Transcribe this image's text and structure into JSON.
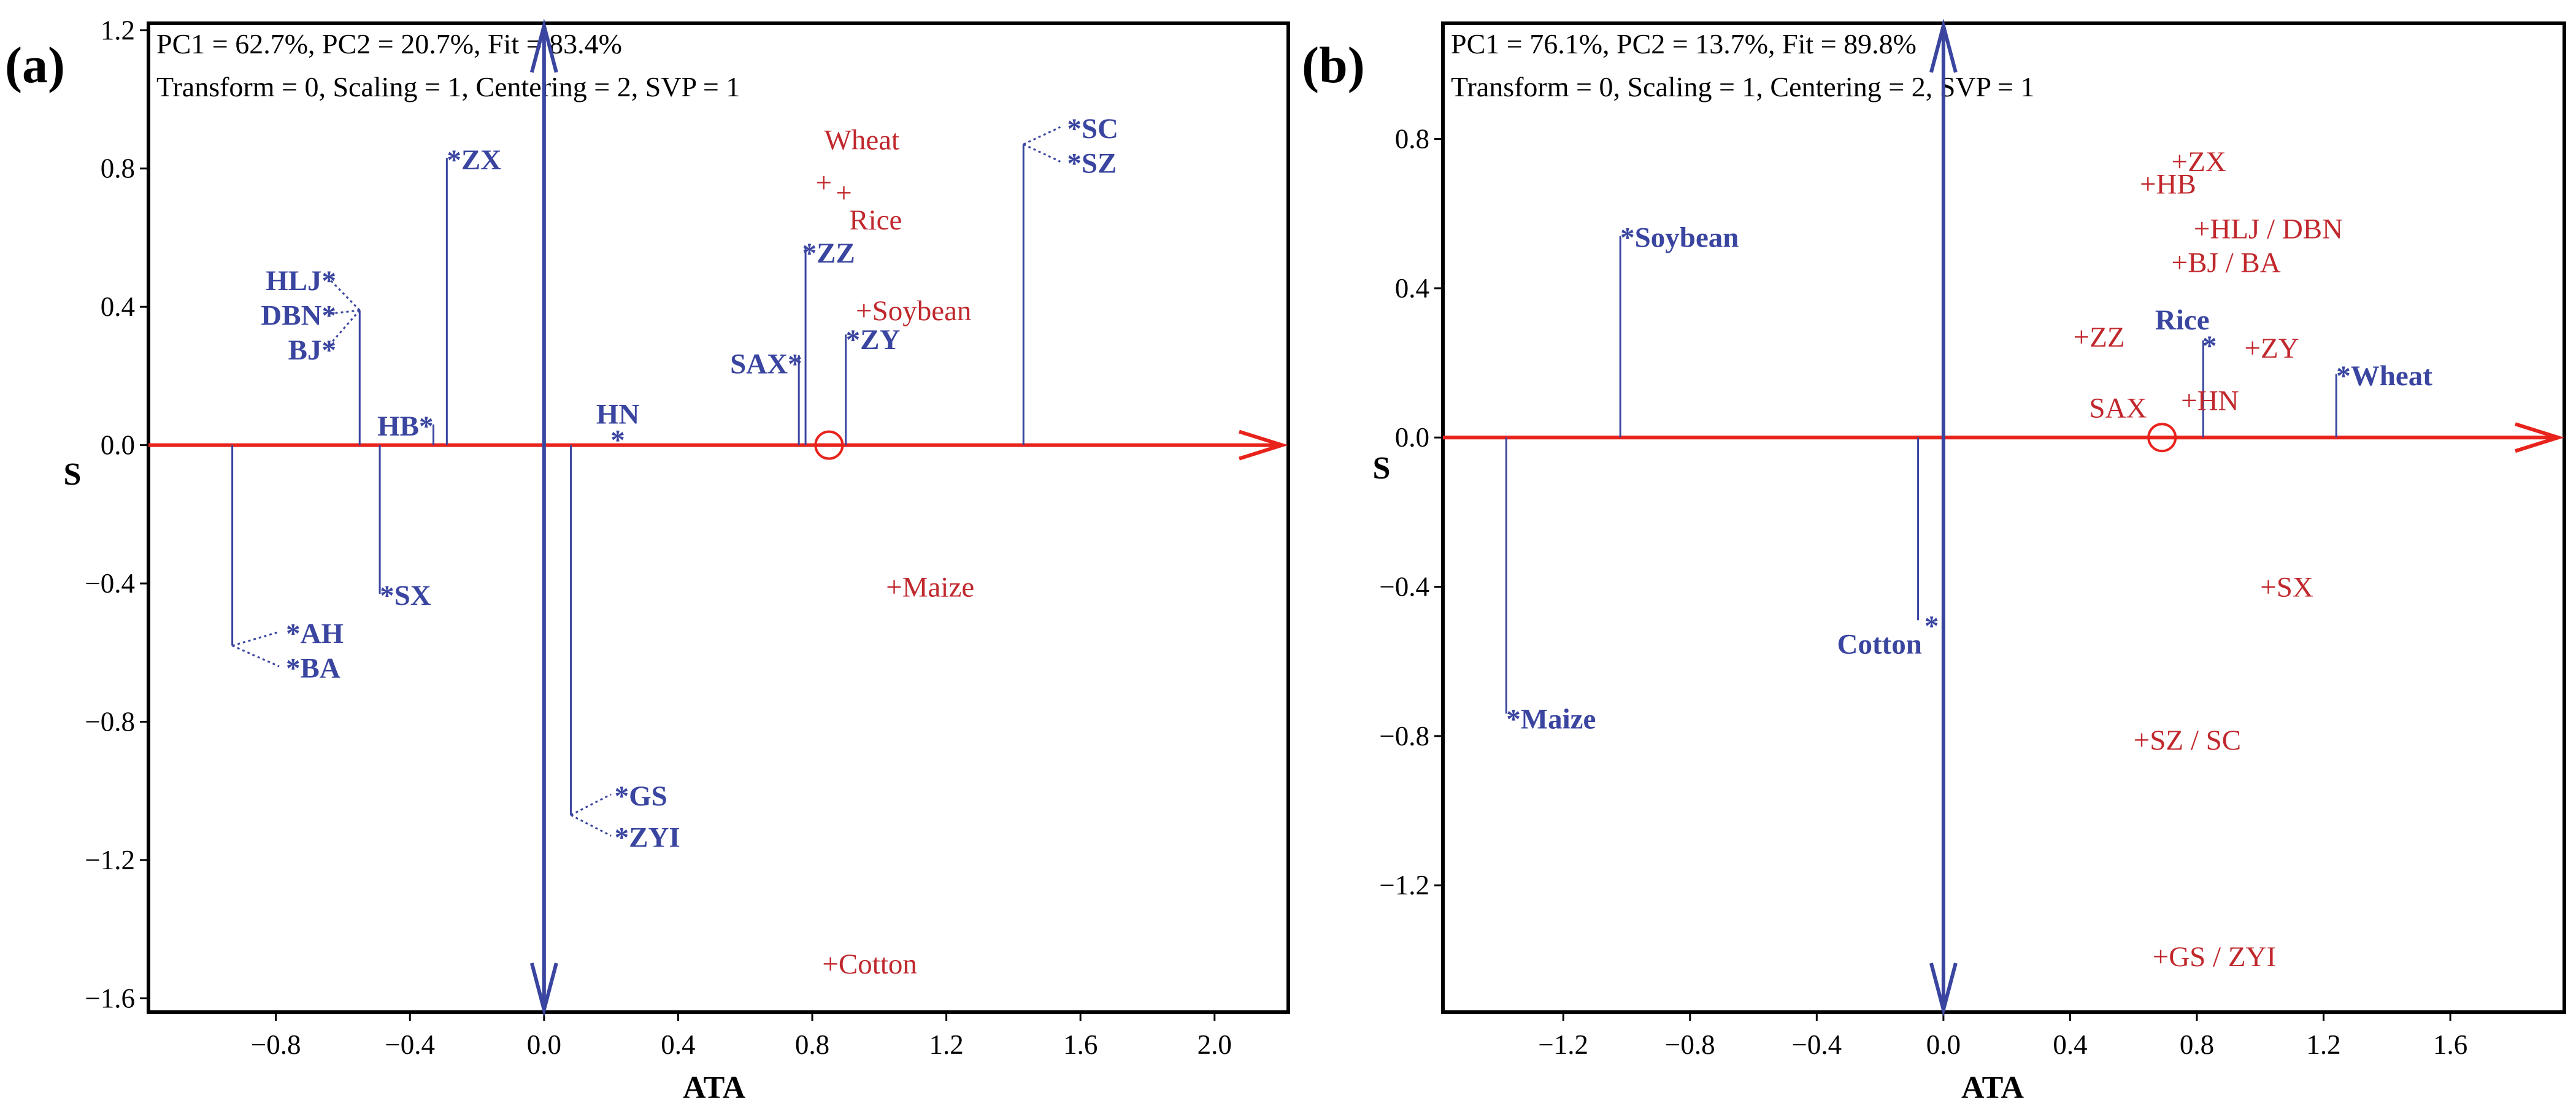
{
  "figure_labels": [
    "(a)",
    "(b)"
  ],
  "colors": {
    "genotype": "#c0282d",
    "environment": "#3a45a0",
    "ata_axis": "#e8231c",
    "ordinate": "#3a45a0",
    "frame": "#000000"
  },
  "chart_data": [
    {
      "type": "scatter",
      "label": "(a)",
      "title_lines": [
        "PC1 = 62.7%, PC2 = 20.7%, Fit = 83.4%",
        "Transform = 0, Scaling = 1, Centering = 2, SVP = 1"
      ],
      "xlabel": "ATA",
      "ylabel": "S",
      "xlim": [
        -1.18,
        2.22
      ],
      "ylim": [
        -1.64,
        1.22
      ],
      "xticks": [
        -0.8,
        -0.4,
        0.0,
        0.4,
        0.8,
        1.2,
        1.6,
        2.0
      ],
      "xtick_labels": [
        "−0.8",
        "−0.4",
        "0.0",
        "0.4",
        "0.8",
        "1.2",
        "1.6",
        "2.0"
      ],
      "yticks": [
        1.2,
        0.8,
        0.4,
        0.0,
        -0.4,
        -0.8,
        -1.2,
        -1.6
      ],
      "ytick_labels": [
        "1.2",
        "0.8",
        "0.4",
        "0.0",
        "−0.4",
        "−0.8",
        "−1.2",
        "−1.6"
      ],
      "ata_arrow_end_x": 2.22,
      "average_environment_x": 0.85,
      "genotypes": [
        {
          "name": "Wheat",
          "x": 0.81,
          "y": 0.76,
          "label_dx": 0.01,
          "label_dy": 0.07,
          "ha": "start"
        },
        {
          "name": "Rice",
          "x": 0.87,
          "y": 0.73,
          "label_dx": 0.02,
          "label_dy": -0.04,
          "ha": "start"
        },
        {
          "name": "Soybean",
          "x": 0.93,
          "y": 0.39,
          "label_dx": 0.0,
          "label_dy": 0.0,
          "ha": "start"
        },
        {
          "name": "Maize",
          "x": 1.02,
          "y": -0.41,
          "label_dx": 0.0,
          "label_dy": 0.0,
          "ha": "start"
        },
        {
          "name": "Cotton",
          "x": 0.83,
          "y": -1.5,
          "label_dx": 0.0,
          "label_dy": 0.0,
          "ha": "start"
        }
      ],
      "environments": [
        {
          "name": "SC",
          "x": 1.56,
          "y": 0.92,
          "ha": "start",
          "group": "sc_sz"
        },
        {
          "name": "SZ",
          "x": 1.56,
          "y": 0.82,
          "ha": "start",
          "group": "sc_sz"
        },
        {
          "name": "ZX",
          "x": -0.29,
          "y": 0.83,
          "ha": "start"
        },
        {
          "name": "HLJ",
          "x": -0.62,
          "y": 0.48,
          "ha": "end",
          "group": "hlj_dbn_bj"
        },
        {
          "name": "DBN",
          "x": -0.62,
          "y": 0.38,
          "ha": "end",
          "group": "hlj_dbn_bj"
        },
        {
          "name": "BJ",
          "x": -0.62,
          "y": 0.28,
          "ha": "end",
          "group": "hlj_dbn_bj"
        },
        {
          "name": "HB",
          "x": -0.33,
          "y": 0.06,
          "ha": "end"
        },
        {
          "name": "HN",
          "x": 0.22,
          "y": 0.02,
          "ha": "middle",
          "label_above": true
        },
        {
          "name": "ZZ",
          "x": 0.77,
          "y": 0.56,
          "ha": "start"
        },
        {
          "name": "SAX",
          "x": 0.77,
          "y": 0.24,
          "ha": "end"
        },
        {
          "name": "ZY",
          "x": 0.9,
          "y": 0.31,
          "ha": "start"
        },
        {
          "name": "SX",
          "x": -0.49,
          "y": -0.43,
          "ha": "start"
        },
        {
          "name": "AH",
          "x": -0.77,
          "y": -0.54,
          "ha": "start",
          "group": "ah_ba"
        },
        {
          "name": "BA",
          "x": -0.77,
          "y": -0.64,
          "ha": "start",
          "group": "ah_ba"
        },
        {
          "name": "GS",
          "x": 0.21,
          "y": -1.01,
          "ha": "start",
          "group": "gs_zyi"
        },
        {
          "name": "ZYI",
          "x": 0.21,
          "y": -1.13,
          "ha": "start",
          "group": "gs_zyi"
        }
      ],
      "projections": [
        {
          "x": -0.93,
          "y1": 0.0,
          "y2": -0.58
        },
        {
          "x": -0.55,
          "y1": 0.0,
          "y2": 0.39
        },
        {
          "x": -0.49,
          "y1": 0.0,
          "y2": -0.43
        },
        {
          "x": -0.33,
          "y1": 0.0,
          "y2": 0.06
        },
        {
          "x": -0.29,
          "y1": 0.0,
          "y2": 0.83
        },
        {
          "x": 0.08,
          "y1": 0.0,
          "y2": -1.07
        },
        {
          "x": 0.76,
          "y1": 0.0,
          "y2": 0.26
        },
        {
          "x": 0.78,
          "y1": 0.0,
          "y2": 0.57
        },
        {
          "x": 0.9,
          "y1": 0.0,
          "y2": 0.32
        },
        {
          "x": 1.43,
          "y1": 0.0,
          "y2": 0.87
        }
      ],
      "connectors": [
        {
          "from": [
            -0.55,
            0.39
          ],
          "to": [
            -0.64,
            0.48
          ]
        },
        {
          "from": [
            -0.55,
            0.39
          ],
          "to": [
            -0.64,
            0.38
          ]
        },
        {
          "from": [
            -0.55,
            0.39
          ],
          "to": [
            -0.64,
            0.29
          ]
        },
        {
          "from": [
            -0.93,
            -0.58
          ],
          "to": [
            -0.79,
            -0.54
          ]
        },
        {
          "from": [
            -0.93,
            -0.58
          ],
          "to": [
            -0.79,
            -0.64
          ]
        },
        {
          "from": [
            0.08,
            -1.07
          ],
          "to": [
            0.2,
            -1.01
          ]
        },
        {
          "from": [
            0.08,
            -1.07
          ],
          "to": [
            0.2,
            -1.13
          ]
        },
        {
          "from": [
            1.43,
            0.87
          ],
          "to": [
            1.54,
            0.92
          ]
        },
        {
          "from": [
            1.43,
            0.87
          ],
          "to": [
            1.54,
            0.82
          ]
        }
      ]
    },
    {
      "type": "scatter",
      "label": "(b)",
      "title_lines": [
        "PC1 = 76.1%, PC2 = 13.7%, Fit = 89.8%",
        "Transform = 0, Scaling = 1, Centering = 2, SVP = 1"
      ],
      "xlabel": "ATA",
      "ylabel": "S",
      "xlim": [
        -1.58,
        1.96
      ],
      "ylim": [
        -1.54,
        1.11
      ],
      "xticks": [
        -1.2,
        -0.8,
        -0.4,
        0.0,
        0.4,
        0.8,
        1.2,
        1.6
      ],
      "xtick_labels": [
        "−1.2",
        "−0.8",
        "−0.4",
        "0.0",
        "0.4",
        "0.8",
        "1.2",
        "1.6"
      ],
      "yticks": [
        0.8,
        0.4,
        0.0,
        -0.4,
        -0.8,
        -1.2
      ],
      "ytick_labels": [
        "0.8",
        "0.4",
        "0.0",
        "−0.4",
        "−0.8",
        "−1.2"
      ],
      "ata_arrow_end_x": 1.96,
      "average_environment_x": 0.69,
      "genotypes": [
        {
          "name": "ZX",
          "x": 0.72,
          "y": 0.74,
          "ha": "start"
        },
        {
          "name": "HB",
          "x": 0.62,
          "y": 0.68,
          "ha": "start"
        },
        {
          "name": "HLJ / DBN",
          "x": 0.79,
          "y": 0.56,
          "ha": "start"
        },
        {
          "name": "BJ / BA",
          "x": 0.72,
          "y": 0.47,
          "ha": "start"
        },
        {
          "name": "ZZ",
          "x": 0.41,
          "y": 0.27,
          "ha": "start"
        },
        {
          "name": "ZY",
          "x": 0.95,
          "y": 0.24,
          "ha": "start"
        },
        {
          "name": "HN",
          "x": 0.75,
          "y": 0.1,
          "ha": "start"
        },
        {
          "name": "SX",
          "x": 1.0,
          "y": -0.4,
          "ha": "start"
        },
        {
          "name": "SZ / SC",
          "x": 0.6,
          "y": -0.81,
          "ha": "start"
        },
        {
          "name": "GS / ZYI",
          "x": 0.66,
          "y": -1.39,
          "ha": "start"
        }
      ],
      "environments": [
        {
          "name": "Soybean",
          "x": -1.02,
          "y": 0.54,
          "ha": "start"
        },
        {
          "name": "Rice",
          "x": 0.84,
          "y": 0.25,
          "ha": "end",
          "label_above": true
        },
        {
          "name": "Wheat",
          "x": 1.24,
          "y": 0.17,
          "ha": "start"
        },
        {
          "name": "Cotton",
          "x": -0.06,
          "y": -0.5,
          "ha": "end",
          "label_below": true
        },
        {
          "name": "Maize",
          "x": -1.38,
          "y": -0.75,
          "ha": "start"
        }
      ],
      "extra_labels": [
        {
          "name": "SAX",
          "x": 0.46,
          "y": 0.08,
          "color": "genotype"
        }
      ],
      "projections": [
        {
          "x": -1.38,
          "y1": 0.0,
          "y2": -0.74
        },
        {
          "x": -1.02,
          "y1": 0.0,
          "y2": 0.54
        },
        {
          "x": -0.08,
          "y1": 0.0,
          "y2": -0.49
        },
        {
          "x": 0.82,
          "y1": 0.0,
          "y2": 0.26
        },
        {
          "x": 1.24,
          "y1": 0.0,
          "y2": 0.17
        }
      ],
      "connectors": []
    }
  ]
}
